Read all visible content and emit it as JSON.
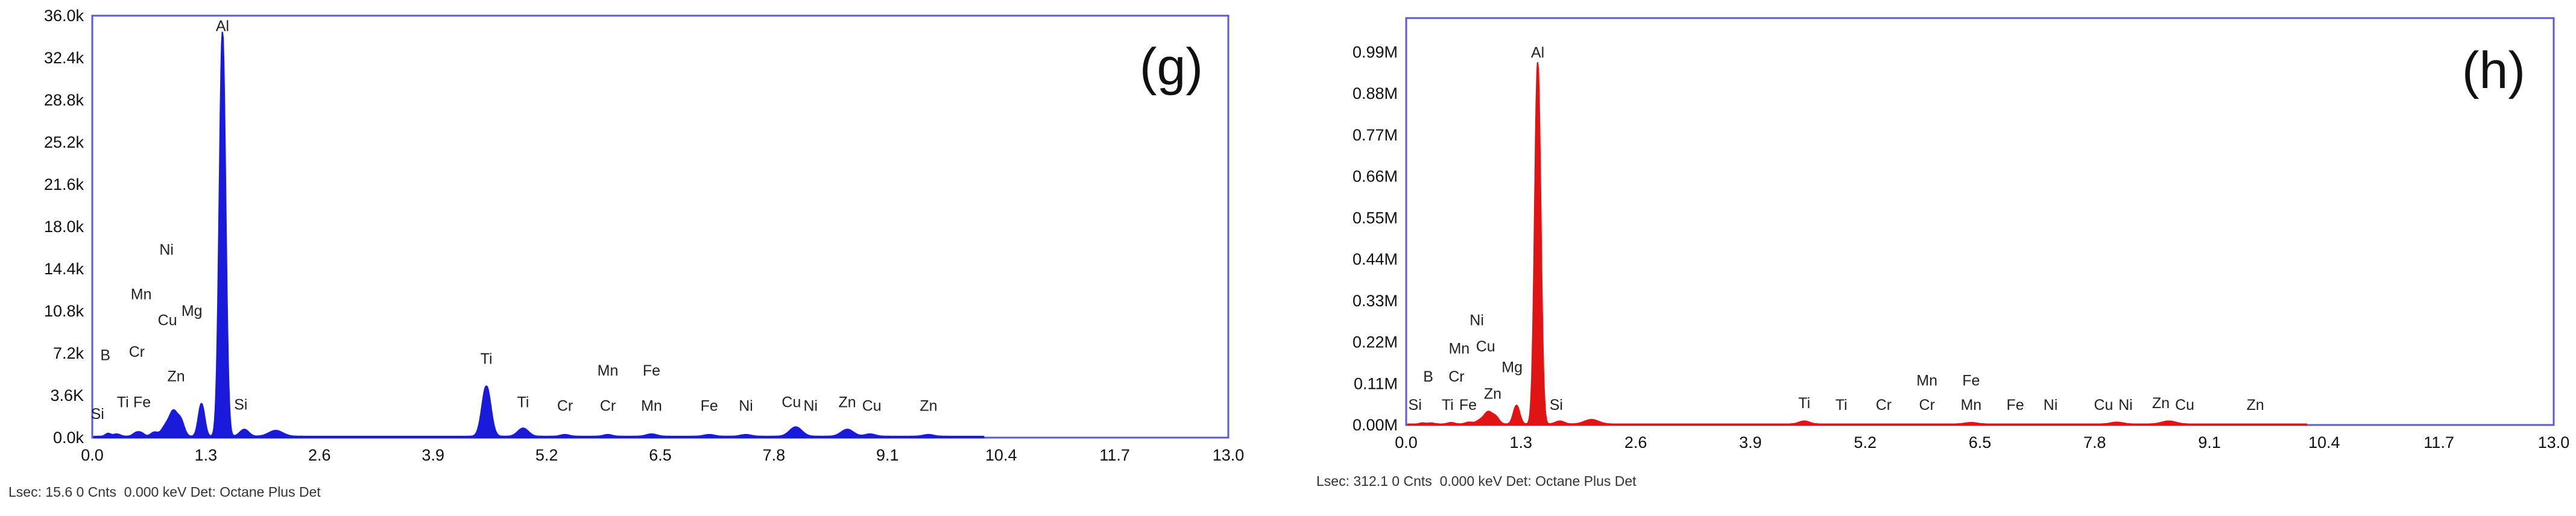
{
  "chart_data": [
    {
      "type": "line",
      "panel_label": "(g)",
      "color": "#1a1adb",
      "frame_color": "#5b5bd6",
      "xlim": [
        0.0,
        13.0
      ],
      "x_ticks": [
        "0.0",
        "1.3",
        "2.6",
        "3.9",
        "5.2",
        "6.5",
        "7.8",
        "9.1",
        "10.4",
        "11.7",
        "13.0"
      ],
      "ylim": [
        0,
        36.0
      ],
      "y_ticks": [
        "0.0k",
        "3.6K",
        "7.2k",
        "10.8k",
        "14.4k",
        "18.0k",
        "21.6k",
        "25.2k",
        "28.8k",
        "32.4k",
        "36.0k"
      ],
      "grid": false,
      "peaks": [
        {
          "x": 0.18,
          "y": 0.25,
          "w": 0.03
        },
        {
          "x": 0.28,
          "y": 0.2,
          "w": 0.04
        },
        {
          "x": 0.51,
          "y": 0.35,
          "w": 0.04
        },
        {
          "x": 0.57,
          "y": 0.2,
          "w": 0.03
        },
        {
          "x": 0.71,
          "y": 0.35,
          "w": 0.04
        },
        {
          "x": 0.85,
          "y": 1.0,
          "w": 0.05
        },
        {
          "x": 0.93,
          "y": 1.8,
          "w": 0.04
        },
        {
          "x": 1.01,
          "y": 1.4,
          "w": 0.04
        },
        {
          "x": 1.25,
          "y": 2.8,
          "w": 0.035
        },
        {
          "x": 1.49,
          "y": 34.5,
          "w": 0.035
        },
        {
          "x": 1.74,
          "y": 0.6,
          "w": 0.05
        },
        {
          "x": 2.1,
          "y": 0.5,
          "w": 0.08
        },
        {
          "x": 4.51,
          "y": 4.3,
          "w": 0.05
        },
        {
          "x": 4.93,
          "y": 0.7,
          "w": 0.06
        },
        {
          "x": 5.41,
          "y": 0.15,
          "w": 0.05
        },
        {
          "x": 5.9,
          "y": 0.15,
          "w": 0.05
        },
        {
          "x": 6.4,
          "y": 0.2,
          "w": 0.06
        },
        {
          "x": 7.06,
          "y": 0.15,
          "w": 0.06
        },
        {
          "x": 7.48,
          "y": 0.15,
          "w": 0.06
        },
        {
          "x": 8.05,
          "y": 0.8,
          "w": 0.07
        },
        {
          "x": 8.64,
          "y": 0.6,
          "w": 0.07
        },
        {
          "x": 8.9,
          "y": 0.2,
          "w": 0.06
        },
        {
          "x": 9.57,
          "y": 0.15,
          "w": 0.06
        }
      ],
      "baseline": 0.1,
      "annotations": [
        {
          "text": "Al",
          "x": 1.49,
          "y": 34.7
        },
        {
          "text": "Ni",
          "x": 0.85,
          "y": 15.6
        },
        {
          "text": "Mn",
          "x": 0.56,
          "y": 11.8
        },
        {
          "text": "Cu",
          "x": 0.86,
          "y": 9.6
        },
        {
          "text": "Mg",
          "x": 1.14,
          "y": 10.4
        },
        {
          "text": "Cr",
          "x": 0.51,
          "y": 6.9
        },
        {
          "text": "Zn",
          "x": 0.96,
          "y": 4.8
        },
        {
          "text": "B",
          "x": 0.15,
          "y": 6.6
        },
        {
          "text": "Ti",
          "x": 0.35,
          "y": 2.6
        },
        {
          "text": "Fe",
          "x": 0.57,
          "y": 2.6
        },
        {
          "text": "Si",
          "x": 0.06,
          "y": 1.6
        },
        {
          "text": "Si",
          "x": 1.7,
          "y": 2.4
        },
        {
          "text": "Ti",
          "x": 4.51,
          "y": 6.3
        },
        {
          "text": "Ti",
          "x": 4.93,
          "y": 2.6
        },
        {
          "text": "Cr",
          "x": 5.41,
          "y": 2.3
        },
        {
          "text": "Mn",
          "x": 5.9,
          "y": 5.3
        },
        {
          "text": "Cr",
          "x": 5.9,
          "y": 2.3
        },
        {
          "text": "Fe",
          "x": 6.4,
          "y": 5.3
        },
        {
          "text": "Mn",
          "x": 6.4,
          "y": 2.3
        },
        {
          "text": "Fe",
          "x": 7.06,
          "y": 2.3
        },
        {
          "text": "Ni",
          "x": 7.48,
          "y": 2.3
        },
        {
          "text": "Cu",
          "x": 8.0,
          "y": 2.6
        },
        {
          "text": "Ni",
          "x": 8.22,
          "y": 2.3
        },
        {
          "text": "Zn",
          "x": 8.64,
          "y": 2.6
        },
        {
          "text": "Cu",
          "x": 8.92,
          "y": 2.3
        },
        {
          "text": "Zn",
          "x": 9.57,
          "y": 2.3
        }
      ],
      "footer": "Lsec: 15.6 0 Cnts  0.000 keV Det: Octane Plus Det"
    },
    {
      "type": "line",
      "panel_label": "(h)",
      "color": "#e01414",
      "frame_color": "#5b5bd6",
      "xlim": [
        0.0,
        13.0
      ],
      "x_ticks": [
        "0.0",
        "1.3",
        "2.6",
        "3.9",
        "5.2",
        "6.5",
        "7.8",
        "9.1",
        "10.4",
        "11.7",
        "13.0"
      ],
      "ylim": [
        0,
        1.08
      ],
      "y_ticks": [
        "0.00M",
        "0.11M",
        "0.22M",
        "0.33M",
        "0.44M",
        "0.55M",
        "0.66M",
        "0.77M",
        "0.88M",
        "0.99M"
      ],
      "grid": false,
      "peaks": [
        {
          "x": 0.18,
          "y": 0.003,
          "w": 0.03
        },
        {
          "x": 0.28,
          "y": 0.003,
          "w": 0.04
        },
        {
          "x": 0.51,
          "y": 0.004,
          "w": 0.04
        },
        {
          "x": 0.71,
          "y": 0.005,
          "w": 0.04
        },
        {
          "x": 0.85,
          "y": 0.012,
          "w": 0.05
        },
        {
          "x": 0.93,
          "y": 0.028,
          "w": 0.04
        },
        {
          "x": 1.01,
          "y": 0.02,
          "w": 0.04
        },
        {
          "x": 1.25,
          "y": 0.05,
          "w": 0.035
        },
        {
          "x": 1.49,
          "y": 0.96,
          "w": 0.033
        },
        {
          "x": 1.74,
          "y": 0.008,
          "w": 0.05
        },
        {
          "x": 2.1,
          "y": 0.012,
          "w": 0.08
        },
        {
          "x": 4.51,
          "y": 0.008,
          "w": 0.06
        },
        {
          "x": 6.4,
          "y": 0.004,
          "w": 0.07
        },
        {
          "x": 8.05,
          "y": 0.005,
          "w": 0.07
        },
        {
          "x": 8.64,
          "y": 0.008,
          "w": 0.08
        }
      ],
      "baseline": 0.002,
      "annotations": [
        {
          "text": "Al",
          "x": 1.49,
          "y": 0.975
        },
        {
          "text": "Ni",
          "x": 0.8,
          "y": 0.265
        },
        {
          "text": "Mn",
          "x": 0.6,
          "y": 0.19
        },
        {
          "text": "Cu",
          "x": 0.9,
          "y": 0.195
        },
        {
          "text": "Cr",
          "x": 0.57,
          "y": 0.115
        },
        {
          "text": "Mg",
          "x": 1.2,
          "y": 0.14
        },
        {
          "text": "Zn",
          "x": 0.98,
          "y": 0.07
        },
        {
          "text": "B",
          "x": 0.25,
          "y": 0.115
        },
        {
          "text": "Si",
          "x": 0.1,
          "y": 0.04
        },
        {
          "text": "Ti",
          "x": 0.47,
          "y": 0.04
        },
        {
          "text": "Fe",
          "x": 0.7,
          "y": 0.04
        },
        {
          "text": "Si",
          "x": 1.7,
          "y": 0.04
        },
        {
          "text": "Ti",
          "x": 4.51,
          "y": 0.045
        },
        {
          "text": "Ti",
          "x": 4.93,
          "y": 0.04
        },
        {
          "text": "Cr",
          "x": 5.41,
          "y": 0.04
        },
        {
          "text": "Mn",
          "x": 5.9,
          "y": 0.105
        },
        {
          "text": "Cr",
          "x": 5.9,
          "y": 0.04
        },
        {
          "text": "Fe",
          "x": 6.4,
          "y": 0.105
        },
        {
          "text": "Mn",
          "x": 6.4,
          "y": 0.04
        },
        {
          "text": "Fe",
          "x": 6.9,
          "y": 0.04
        },
        {
          "text": "Ni",
          "x": 7.3,
          "y": 0.04
        },
        {
          "text": "Cu",
          "x": 7.9,
          "y": 0.04
        },
        {
          "text": "Ni",
          "x": 8.15,
          "y": 0.04
        },
        {
          "text": "Zn",
          "x": 8.55,
          "y": 0.045
        },
        {
          "text": "Cu",
          "x": 8.82,
          "y": 0.04
        },
        {
          "text": "Zn",
          "x": 9.62,
          "y": 0.04
        }
      ],
      "footer": "Lsec: 312.1 0 Cnts  0.000 keV Det: Octane Plus Det"
    }
  ]
}
